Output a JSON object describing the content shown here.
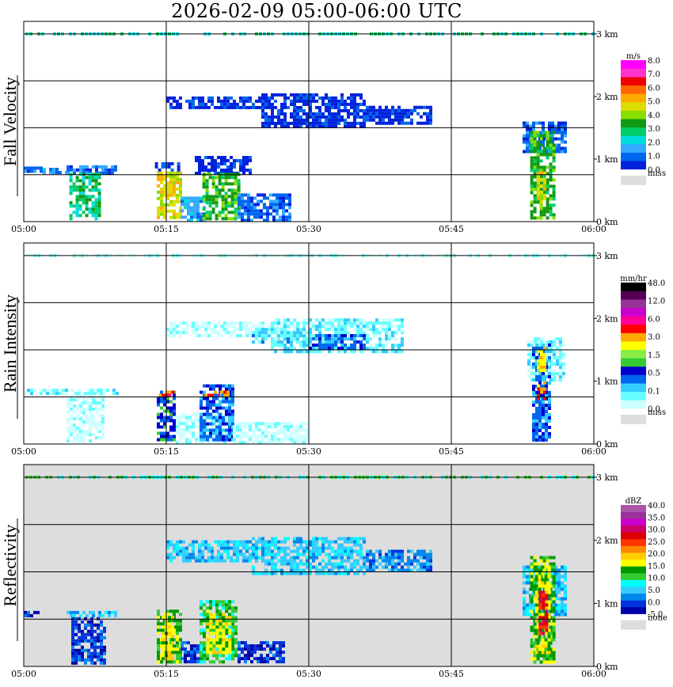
{
  "title": "2026-02-09   05:00-06:00 UTC",
  "chart_data": [
    {
      "type": "heatmap",
      "panel": "fall-velocity",
      "ylabel": "Fall Velocity",
      "xticks": [
        "05:00",
        "05:15",
        "05:30",
        "05:45",
        "06:00"
      ],
      "yticks": [
        "0 km",
        "1 km",
        "2 km",
        "3 km"
      ],
      "ylim_km": [
        0,
        3.2
      ],
      "grid": true,
      "background": "#ffffff",
      "colorbar": {
        "unit": "m/s",
        "colors": [
          "#0022dd",
          "#0066ee",
          "#33aaff",
          "#00dddd",
          "#00cc66",
          "#119911",
          "#88dd00",
          "#dddd00",
          "#ffaa00",
          "#ff6600",
          "#ee0000",
          "#ff33cc",
          "#ff00ff"
        ],
        "labels": [
          "0.0",
          "1.0",
          "2.0",
          "3.0",
          "4.0",
          "5.0",
          "6.0",
          "7.0",
          "8.0"
        ],
        "missing_label": "miss",
        "missing_color": "#dddddd"
      },
      "echoes": [
        {
          "t0": 0.0,
          "t1": 2.0,
          "h0": 0.78,
          "h1": 0.88,
          "level": 1
        },
        {
          "t0": 2.0,
          "t1": 4.5,
          "h0": 0.8,
          "h1": 0.86,
          "level": 2
        },
        {
          "t0": 4.5,
          "t1": 9.8,
          "h0": 0.78,
          "h1": 0.9,
          "level": 1
        },
        {
          "t0": 4.8,
          "t1": 8.0,
          "h0": 0.05,
          "h1": 0.78,
          "level": 4
        },
        {
          "t0": 13.8,
          "t1": 16.2,
          "h0": 0.8,
          "h1": 0.95,
          "level": 0
        },
        {
          "t0": 14.0,
          "t1": 16.5,
          "h0": 0.05,
          "h1": 0.8,
          "level": 7
        },
        {
          "t0": 16.5,
          "t1": 19.0,
          "h0": 0.0,
          "h1": 0.4,
          "level": 2
        },
        {
          "t0": 18.0,
          "t1": 24.0,
          "h0": 0.78,
          "h1": 1.05,
          "level": 0
        },
        {
          "t0": 18.8,
          "t1": 22.5,
          "h0": 0.05,
          "h1": 0.78,
          "level": 5
        },
        {
          "t0": 22.5,
          "t1": 28.0,
          "h0": 0.0,
          "h1": 0.45,
          "level": 1
        },
        {
          "t0": 15.0,
          "t1": 26.0,
          "h0": 1.8,
          "h1": 2.0,
          "level": 0
        },
        {
          "t0": 25.0,
          "t1": 36.0,
          "h0": 1.5,
          "h1": 2.05,
          "level": 0
        },
        {
          "t0": 36.0,
          "t1": 43.0,
          "h0": 1.55,
          "h1": 1.85,
          "level": 0
        },
        {
          "t0": 52.5,
          "t1": 57.0,
          "h0": 1.1,
          "h1": 1.6,
          "level": 1
        },
        {
          "t0": 53.3,
          "t1": 55.8,
          "h0": 0.05,
          "h1": 1.45,
          "level": 5
        },
        {
          "t0": 54.0,
          "t1": 55.0,
          "h0": 0.3,
          "h1": 0.8,
          "level": 7
        }
      ],
      "top_layer": {
        "h": 3.0,
        "level": 4
      }
    },
    {
      "type": "heatmap",
      "panel": "rain-intensity",
      "ylabel": "Rain Intensity",
      "xticks": [
        "05:00",
        "05:15",
        "05:30",
        "05:45",
        "06:00"
      ],
      "yticks": [
        "0 km",
        "1 km",
        "2 km",
        "3 km"
      ],
      "ylim_km": [
        0,
        3.2
      ],
      "grid": true,
      "background": "#ffffff",
      "colorbar": {
        "unit": "mm/hr",
        "colors": [
          "#ccffff",
          "#66ffff",
          "#33ccff",
          "#0066ee",
          "#0000cc",
          "#33cc33",
          "#88ee44",
          "#ffff00",
          "#ffaa00",
          "#ff0000",
          "#ff0099",
          "#cc00cc",
          "#993399",
          "#550055",
          "#000000"
        ],
        "labels": [
          "0.0",
          "0.1",
          "0.5",
          "1.5",
          "3.0",
          "6.0",
          "12.0",
          "48.0"
        ],
        "missing_label": "miss",
        "missing_color": "#dddddd"
      },
      "echoes": [
        {
          "t0": 0.0,
          "t1": 9.8,
          "h0": 0.78,
          "h1": 0.88,
          "level": 1
        },
        {
          "t0": 4.5,
          "t1": 8.5,
          "h0": 0.05,
          "h1": 0.78,
          "level": 0
        },
        {
          "t0": 14.0,
          "t1": 16.0,
          "h0": 0.05,
          "h1": 0.85,
          "level": 4
        },
        {
          "t0": 14.2,
          "t1": 15.8,
          "h0": 0.75,
          "h1": 0.85,
          "level": 9
        },
        {
          "t0": 16.0,
          "t1": 22.0,
          "h0": 0.0,
          "h1": 0.5,
          "level": 0
        },
        {
          "t0": 18.5,
          "t1": 22.0,
          "h0": 0.05,
          "h1": 0.95,
          "level": 3
        },
        {
          "t0": 19.0,
          "t1": 21.5,
          "h0": 0.75,
          "h1": 0.85,
          "level": 9
        },
        {
          "t0": 22.0,
          "t1": 30.0,
          "h0": 0.0,
          "h1": 0.35,
          "level": 0
        },
        {
          "t0": 15.0,
          "t1": 26.0,
          "h0": 1.7,
          "h1": 1.95,
          "level": 0
        },
        {
          "t0": 24.0,
          "t1": 28.0,
          "h0": 1.6,
          "h1": 1.85,
          "level": 2
        },
        {
          "t0": 26.0,
          "t1": 40.0,
          "h0": 1.45,
          "h1": 2.0,
          "level": 1
        },
        {
          "t0": 30.0,
          "t1": 36.0,
          "h0": 1.5,
          "h1": 1.75,
          "level": 3
        },
        {
          "t0": 53.0,
          "t1": 57.0,
          "h0": 1.0,
          "h1": 1.7,
          "level": 1
        },
        {
          "t0": 53.5,
          "t1": 55.5,
          "h0": 0.05,
          "h1": 1.6,
          "level": 3
        },
        {
          "t0": 54.0,
          "t1": 55.0,
          "h0": 1.15,
          "h1": 1.55,
          "level": 7
        },
        {
          "t0": 54.0,
          "t1": 55.0,
          "h0": 0.7,
          "h1": 1.0,
          "level": 8
        }
      ],
      "top_layer": {
        "h": 3.0,
        "level": 1
      }
    },
    {
      "type": "heatmap",
      "panel": "reflectivity",
      "ylabel": "Reflectivity",
      "xticks": [
        "05:00",
        "05:15",
        "05:30",
        "05:45",
        "06:00"
      ],
      "yticks": [
        "0 km",
        "1 km",
        "2 km",
        "3 km"
      ],
      "ylim_km": [
        0,
        3.2
      ],
      "grid": true,
      "background": "#dddddd",
      "colorbar": {
        "unit": "dBZ",
        "colors": [
          "#0000aa",
          "#0033dd",
          "#0088ee",
          "#33ccff",
          "#00ffff",
          "#33cc33",
          "#009900",
          "#ffff00",
          "#ffcc00",
          "#ff8800",
          "#ff3300",
          "#dd0000",
          "#cc0066",
          "#cc00cc",
          "#993399",
          "#aa55aa"
        ],
        "labels": [
          "-5.0",
          "0.0",
          "5.0",
          "10.0",
          "15.0",
          "20.0",
          "25.0",
          "30.0",
          "35.0",
          "40.0"
        ],
        "missing_label": "none",
        "missing_color": "#dddddd"
      },
      "echoes": [
        {
          "t0": 0.0,
          "t1": 2.0,
          "h0": 0.78,
          "h1": 0.88,
          "level": 1
        },
        {
          "t0": 4.5,
          "t1": 9.8,
          "h0": 0.78,
          "h1": 0.88,
          "level": 3
        },
        {
          "t0": 5.0,
          "t1": 8.5,
          "h0": 0.05,
          "h1": 0.78,
          "level": 1
        },
        {
          "t0": 14.0,
          "t1": 16.5,
          "h0": 0.05,
          "h1": 0.9,
          "level": 6
        },
        {
          "t0": 14.5,
          "t1": 15.5,
          "h0": 0.1,
          "h1": 0.8,
          "level": 7
        },
        {
          "t0": 16.5,
          "t1": 19.0,
          "h0": 0.05,
          "h1": 0.4,
          "level": 1
        },
        {
          "t0": 18.5,
          "t1": 22.5,
          "h0": 0.05,
          "h1": 1.05,
          "level": 5
        },
        {
          "t0": 19.2,
          "t1": 21.8,
          "h0": 0.2,
          "h1": 0.9,
          "level": 7
        },
        {
          "t0": 22.5,
          "t1": 27.5,
          "h0": 0.05,
          "h1": 0.4,
          "level": 1
        },
        {
          "t0": 15.0,
          "t1": 26.0,
          "h0": 1.65,
          "h1": 2.0,
          "level": 3
        },
        {
          "t0": 24.0,
          "t1": 36.0,
          "h0": 1.45,
          "h1": 2.05,
          "level": 3
        },
        {
          "t0": 36.0,
          "t1": 43.0,
          "h0": 1.5,
          "h1": 1.85,
          "level": 2
        },
        {
          "t0": 52.5,
          "t1": 57.0,
          "h0": 0.8,
          "h1": 1.6,
          "level": 3
        },
        {
          "t0": 53.3,
          "t1": 55.8,
          "h0": 0.05,
          "h1": 1.75,
          "level": 6
        },
        {
          "t0": 53.8,
          "t1": 55.2,
          "h0": 0.2,
          "h1": 1.6,
          "level": 7
        },
        {
          "t0": 54.2,
          "t1": 54.9,
          "h0": 0.5,
          "h1": 1.2,
          "level": 11
        }
      ],
      "top_layer": {
        "h": 3.0,
        "level": 5
      }
    }
  ]
}
